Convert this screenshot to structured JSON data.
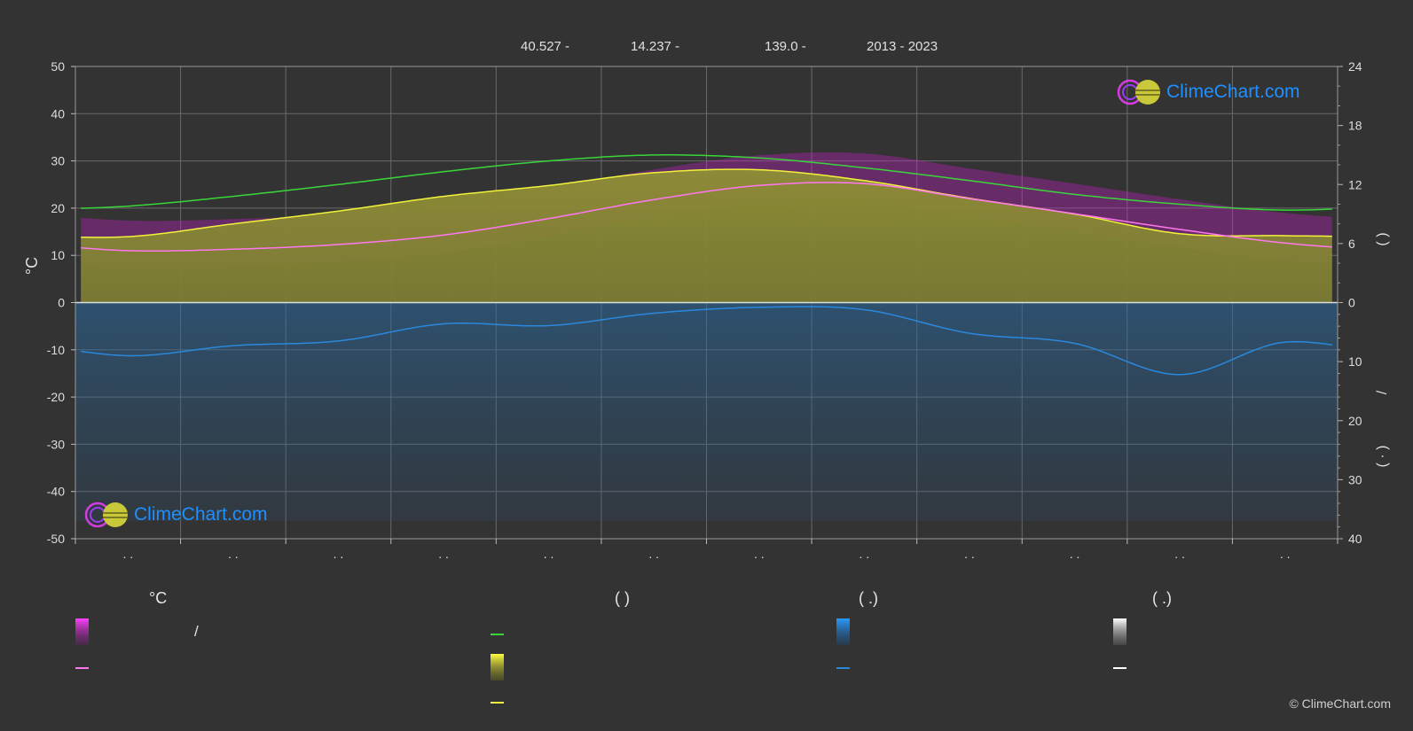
{
  "header": {
    "lat": "40.527 -",
    "lon": "14.237 -",
    "elev": "139.0 -",
    "years": "2013 - 2023"
  },
  "logo": {
    "text": "ClimeChart.com"
  },
  "copyright": "© ClimeChart.com",
  "legend": {
    "col1_title": "°C",
    "col1_item1": "/",
    "col2_title": "(          )",
    "col3_title": "(    .)",
    "col4_title": "(    .)"
  },
  "colors": {
    "background": "#333333",
    "daylight": "#39d639",
    "sunshine": "#e8e83a",
    "temp_max_band": "#c81ec8",
    "temp_mean": "#ff77ee",
    "rain": "#2a88dd",
    "snow": "#ffffff",
    "sunshine_fill": "#8d8d35"
  },
  "chart_data": {
    "type": "line",
    "x_months": 12,
    "y_left": {
      "label": "°C",
      "ticks": [
        50,
        40,
        30,
        20,
        10,
        0,
        -10,
        -20,
        -30,
        -40,
        -50
      ],
      "range": [
        -50,
        50
      ]
    },
    "y_right_top": {
      "ticks": [
        24,
        18,
        12,
        6,
        0
      ],
      "range": [
        0,
        24
      ]
    },
    "y_right_bottom": {
      "ticks": [
        10,
        20,
        30,
        40
      ],
      "range": [
        0,
        40
      ]
    },
    "y_right_labels": [
      "(   )",
      "/",
      "(  ·  )"
    ],
    "month_labels": [
      ". .",
      ". .",
      ". .",
      ". .",
      ". .",
      ". .",
      ". .",
      ". .",
      ". .",
      ". .",
      ". .",
      ". ."
    ],
    "series": [
      {
        "key": "daylight",
        "unit": "h",
        "values": [
          9.8,
          10.8,
          12.0,
          13.3,
          14.4,
          15.0,
          14.7,
          13.7,
          12.4,
          11.0,
          10.0,
          9.4
        ]
      },
      {
        "key": "sunshine",
        "unit": "h",
        "values": [
          6.7,
          8.0,
          9.3,
          10.8,
          11.9,
          13.2,
          13.5,
          12.4,
          10.6,
          9.0,
          7.0,
          6.8
        ]
      },
      {
        "key": "temp_mean",
        "unit": "°C",
        "values": [
          11.0,
          11.3,
          12.3,
          14.3,
          17.8,
          21.8,
          24.8,
          25.2,
          22.0,
          18.8,
          15.5,
          12.6
        ]
      },
      {
        "key": "rain",
        "unit": "mm",
        "values": [
          9.0,
          7.3,
          6.5,
          3.6,
          3.9,
          1.8,
          0.8,
          1.2,
          5.2,
          6.9,
          12.2,
          6.7
        ]
      }
    ]
  }
}
